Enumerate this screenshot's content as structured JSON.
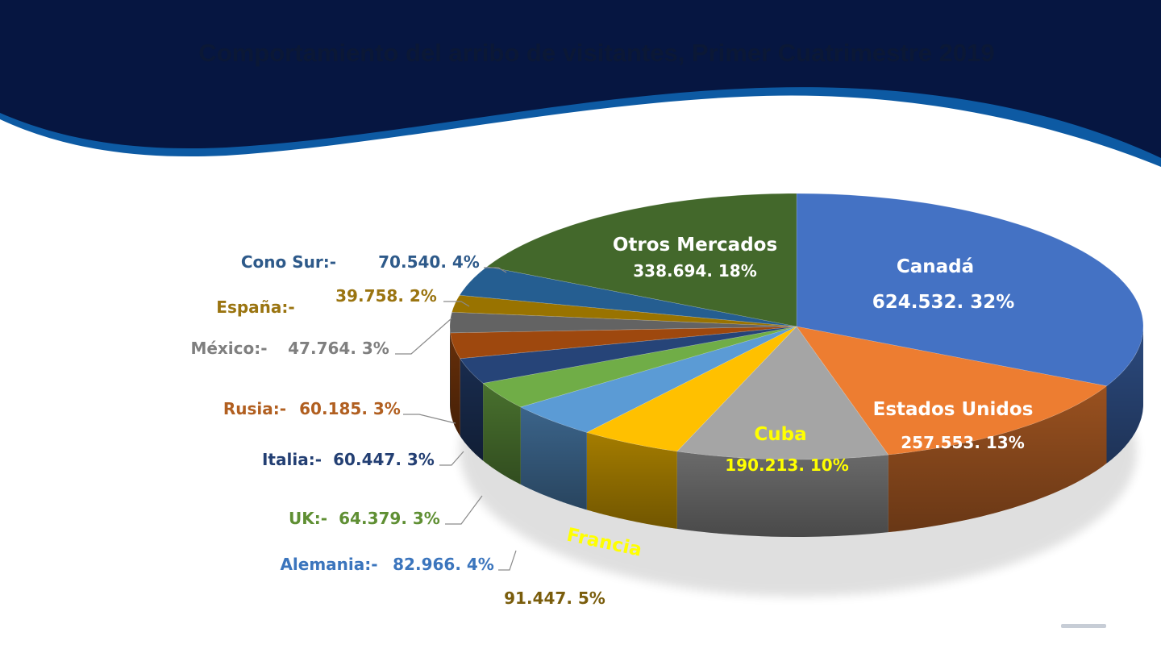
{
  "title": "Comportamiento del arribo de visitantes, Primer Cuatrimestre 2019",
  "chart_data": {
    "type": "pie",
    "title": "Comportamiento del arribo de visitantes, Primer Cuatrimestre 2019",
    "style": "3d",
    "categories": [
      "Canadá",
      "Estados Unidos",
      "Cuba",
      "Francia",
      "Alemania",
      "UK",
      "Italia",
      "Rusia",
      "México",
      "España",
      "Cono Sur",
      "Otros Mercados"
    ],
    "values": [
      624532,
      257553,
      190213,
      91447,
      82966,
      64379,
      60447,
      60185,
      47764,
      39758,
      70540,
      338694
    ],
    "percents": [
      32,
      13,
      10,
      5,
      4,
      3,
      3,
      3,
      3,
      2,
      4,
      18
    ],
    "colors": [
      "#4472c4",
      "#ed7d31",
      "#a5a5a5",
      "#ffc000",
      "#5b9bd5",
      "#70ad47",
      "#264478",
      "#9e480e",
      "#636363",
      "#997300",
      "#255e91",
      "#43682b"
    ],
    "labels": {
      "canada": {
        "name": "Canadá",
        "value": "624.532. 32%"
      },
      "usa": {
        "name": "Estados Unidos",
        "value": "257.553. 13%"
      },
      "cuba": {
        "name": "Cuba",
        "value": "190.213. 10%"
      },
      "francia": {
        "name": "Francia",
        "value": "91.447. 5%"
      },
      "alemania": {
        "name": "Alemania:-",
        "value": "82.966. 4%"
      },
      "uk": {
        "name": "UK:-",
        "value": "64.379. 3%"
      },
      "italia": {
        "name": "Italia:-",
        "value": "60.447. 3%"
      },
      "rusia": {
        "name": "Rusia:-",
        "value": "60.185. 3%"
      },
      "mexico": {
        "name": "México:-",
        "value": "47.764. 3%"
      },
      "espana": {
        "name": "España:-",
        "value": "39.758. 2%"
      },
      "conosur": {
        "name": "Cono Sur:-",
        "value": "70.540. 4%"
      },
      "otros": {
        "name": "Otros Mercados",
        "value": "338.694. 18%"
      }
    },
    "label_colors": {
      "alemania": "#3b75bd",
      "uk": "#5f8f33",
      "italia": "#233f73",
      "rusia": "#b15f20",
      "mexico": "#7f7f7f",
      "espana": "#9a7410",
      "conosur": "#2e5a8a",
      "francia_value": "#7a5d0c"
    },
    "colors_ui": {
      "header": "#061641",
      "wave": "#0d5aa3",
      "label_white": "#ffffff",
      "label_yellow": "#ffff00"
    }
  }
}
